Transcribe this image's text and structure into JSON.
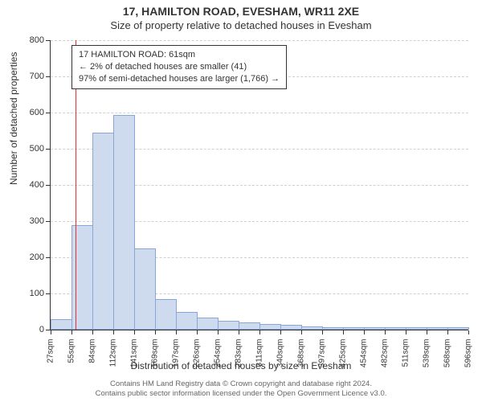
{
  "title_main": "17, HAMILTON ROAD, EVESHAM, WR11 2XE",
  "title_sub": "Size of property relative to detached houses in Evesham",
  "ylabel": "Number of detached properties",
  "xlabel": "Distribution of detached houses by size in Evesham",
  "footer_line1": "Contains HM Land Registry data © Crown copyright and database right 2024.",
  "footer_line2": "Contains public sector information licensed under the Open Government Licence v3.0.",
  "chart": {
    "type": "histogram",
    "background_color": "#ffffff",
    "axis_color": "#333333",
    "grid_color": "#d0d0d0",
    "bar_fill": "#cedbef",
    "bar_border": "#8aa6d6",
    "marker_color": "#dd3333",
    "label_fontsize": 12,
    "tick_fontsize": 11,
    "ylim": [
      0,
      800
    ],
    "ytick_step": 100,
    "xtick_labels": [
      "27sqm",
      "55sqm",
      "84sqm",
      "112sqm",
      "141sqm",
      "169sqm",
      "197sqm",
      "226sqm",
      "254sqm",
      "283sqm",
      "311sqm",
      "340sqm",
      "368sqm",
      "397sqm",
      "425sqm",
      "454sqm",
      "482sqm",
      "511sqm",
      "539sqm",
      "568sqm",
      "596sqm"
    ],
    "bar_values": [
      25,
      285,
      540,
      590,
      220,
      80,
      45,
      30,
      20,
      15,
      12,
      10,
      5,
      3,
      2,
      1,
      1,
      1,
      1,
      1
    ],
    "marker_x_sqm": 61,
    "infobox": {
      "line1": "17 HAMILTON ROAD: 61sqm",
      "line2": "← 2% of detached houses are smaller (41)",
      "line3": "97% of semi-detached houses are larger (1,766) →"
    }
  }
}
